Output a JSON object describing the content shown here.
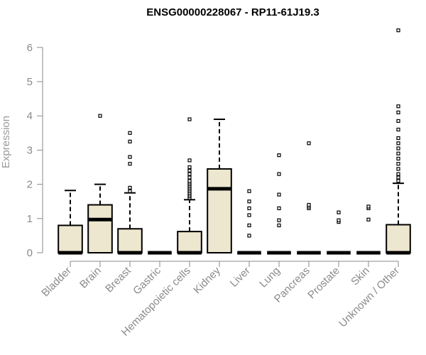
{
  "chart_data": {
    "type": "boxplot",
    "title": "ENSG00000228067 - RP11-61J19.3",
    "xlabel": "",
    "ylabel": "Expression",
    "ylim": [
      0,
      6.6
    ],
    "yticks": [
      0,
      1,
      2,
      3,
      4,
      5,
      6
    ],
    "box_fill": "#ede7cf",
    "box_stroke": "#000000",
    "axis_color": "#8a8a8a",
    "categories": [
      {
        "name": "Bladder",
        "q1": 0,
        "median": 0,
        "q3": 0.8,
        "whisker_low": 0,
        "whisker_high": 1.82,
        "outliers": []
      },
      {
        "name": "Brain",
        "q1": 0,
        "median": 0.97,
        "q3": 1.4,
        "whisker_low": 0,
        "whisker_high": 2.0,
        "outliers": [
          4.0
        ]
      },
      {
        "name": "Breast",
        "q1": 0,
        "median": 0,
        "q3": 0.7,
        "whisker_low": 0,
        "whisker_high": 1.75,
        "outliers": [
          1.8,
          1.9,
          2.6,
          2.8,
          3.25,
          3.5
        ]
      },
      {
        "name": "Gastric",
        "q1": 0,
        "median": 0,
        "q3": 0,
        "whisker_low": 0,
        "whisker_high": 0,
        "outliers": []
      },
      {
        "name": "Hematopoietic cells",
        "q1": 0,
        "median": 0,
        "q3": 0.62,
        "whisker_low": 0,
        "whisker_high": 1.55,
        "outliers": [
          1.6,
          1.65,
          1.7,
          1.75,
          1.8,
          1.85,
          1.9,
          1.95,
          2.0,
          2.05,
          2.1,
          2.2,
          2.3,
          2.4,
          2.5,
          2.7,
          3.9
        ]
      },
      {
        "name": "Kidney",
        "q1": 0,
        "median": 1.87,
        "q3": 2.45,
        "whisker_low": 0,
        "whisker_high": 3.9,
        "outliers": []
      },
      {
        "name": "Liver",
        "q1": 0,
        "median": 0,
        "q3": 0,
        "whisker_low": 0,
        "whisker_high": 0,
        "outliers": [
          0.5,
          0.8,
          1.1,
          1.3,
          1.5,
          1.8
        ]
      },
      {
        "name": "Lung",
        "q1": 0,
        "median": 0,
        "q3": 0,
        "whisker_low": 0,
        "whisker_high": 0,
        "outliers": [
          0.8,
          0.95,
          1.3,
          1.7,
          2.3,
          2.85
        ]
      },
      {
        "name": "Pancreas",
        "q1": 0,
        "median": 0,
        "q3": 0,
        "whisker_low": 0,
        "whisker_high": 0,
        "outliers": [
          1.3,
          1.35,
          1.4,
          3.2
        ]
      },
      {
        "name": "Prostate",
        "q1": 0,
        "median": 0,
        "q3": 0,
        "whisker_low": 0,
        "whisker_high": 0,
        "outliers": [
          0.9,
          0.95,
          1.18
        ]
      },
      {
        "name": "Skin",
        "q1": 0,
        "median": 0,
        "q3": 0,
        "whisker_low": 0,
        "whisker_high": 0,
        "outliers": [
          0.97,
          1.3,
          1.35
        ]
      },
      {
        "name": "Unknown / Other",
        "q1": 0,
        "median": 0,
        "q3": 0.82,
        "whisker_low": 0,
        "whisker_high": 2.03,
        "outliers": [
          2.1,
          2.2,
          2.3,
          2.45,
          2.6,
          2.75,
          2.9,
          3.05,
          3.2,
          3.35,
          3.6,
          3.85,
          4.1,
          4.28,
          6.5
        ]
      }
    ]
  }
}
